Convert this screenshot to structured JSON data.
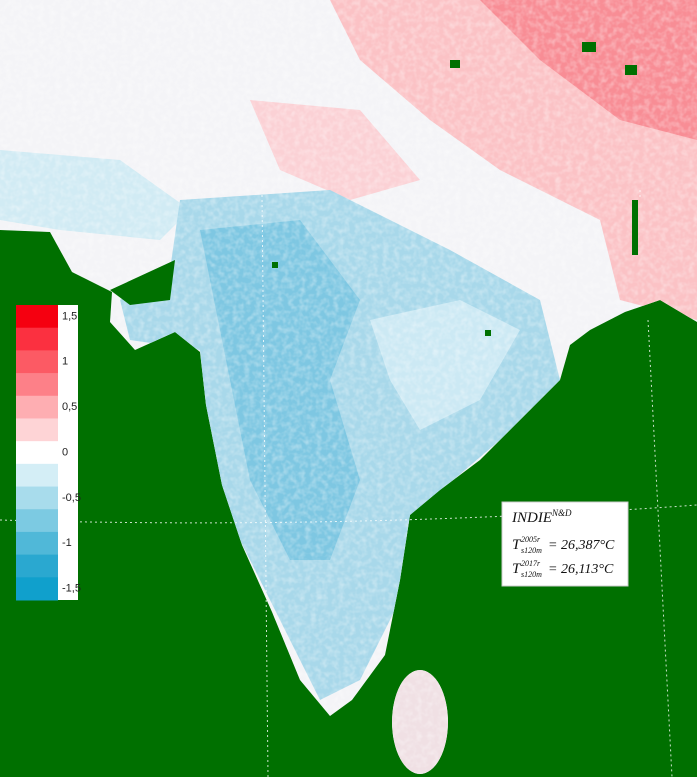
{
  "legend": {
    "labels": [
      "1,5",
      "1",
      "0,5",
      "0",
      "-0,5",
      "-1",
      "-1,5"
    ],
    "colors": [
      "#f50010",
      "#fb3040",
      "#fc5a64",
      "#fd8088",
      "#feaeb2",
      "#fed4d6",
      "#ffffff",
      "#d4eef6",
      "#a8dcec",
      "#7ccae2",
      "#50b8d8",
      "#2aa8d0",
      "#10a0cc"
    ]
  },
  "annotation": {
    "title": "INDIE",
    "title_sup": "N&D",
    "lines": [
      {
        "symbol": "T",
        "sup": "2005r",
        "sub": "s120m",
        "value": "= 26,387°C"
      },
      {
        "symbol": "T",
        "sup": "2017r",
        "sub": "s120m",
        "value": "= 26,113°C"
      }
    ]
  }
}
